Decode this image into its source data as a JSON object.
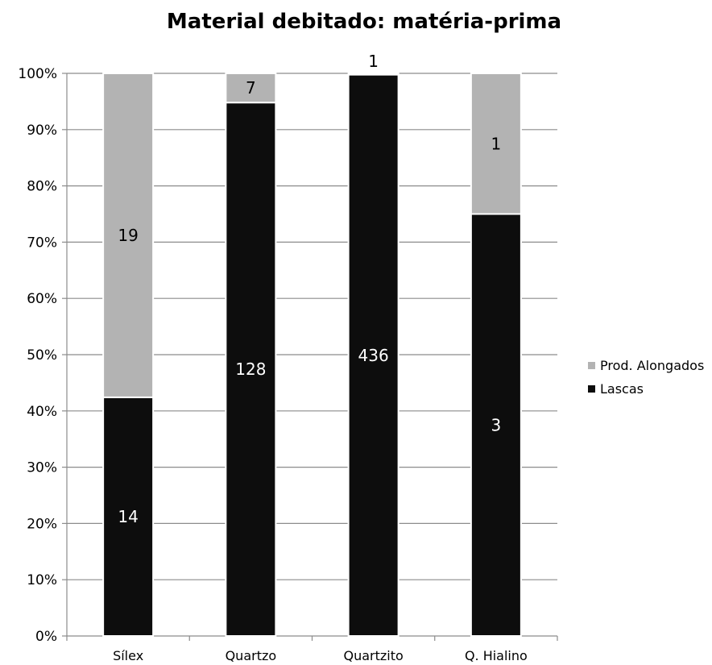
{
  "chart_data": {
    "type": "bar",
    "stacked": "percent",
    "title": "Material debitado: matéria-prima",
    "xlabel": "",
    "ylabel": "",
    "ylim": [
      0,
      100
    ],
    "yticks": [
      "0%",
      "10%",
      "20%",
      "30%",
      "40%",
      "50%",
      "60%",
      "70%",
      "80%",
      "90%",
      "100%"
    ],
    "grid": true,
    "legend": "right",
    "categories": [
      "Sílex",
      "Quartzo",
      "Quartzito",
      "Q. Hialino"
    ],
    "series": [
      {
        "name": "Lascas",
        "values": [
          14,
          128,
          436,
          3
        ],
        "labels": [
          "14",
          "128",
          "436",
          "3"
        ],
        "color": "#0d0d0d",
        "label_color": "#ffffff"
      },
      {
        "name": "Prod. Alongados",
        "values": [
          19,
          7,
          1,
          1
        ],
        "labels": [
          "19",
          "7",
          "1",
          "1"
        ],
        "color": "#b3b3b3",
        "label_color": "#000000"
      }
    ]
  }
}
